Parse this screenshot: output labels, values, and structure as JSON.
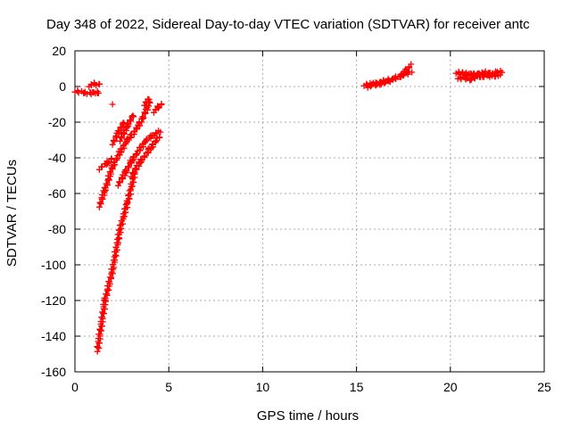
{
  "chart_data": {
    "type": "scatter",
    "title": "Day 348 of 2022, Sidereal Day-to-day VTEC variation (SDTVAR) for receiver antc",
    "xlabel": "GPS time / hours",
    "ylabel": "SDTVAR / TECUs",
    "xlim": [
      0,
      25
    ],
    "ylim": [
      -160,
      20
    ],
    "xticks": [
      "0",
      "5",
      "10",
      "15",
      "20",
      "25"
    ],
    "yticks": [
      "20",
      "0",
      "-20",
      "-40",
      "-60",
      "-80",
      "-100",
      "-120",
      "-140",
      "-160"
    ],
    "grid": true,
    "marker": "+",
    "color": "#ff0000",
    "series": [
      {
        "segments": [
          [
            [
              0.0,
              -2.5
            ],
            [
              0.5,
              -3.5
            ],
            [
              1.0,
              -3.8
            ],
            [
              1.3,
              -3.2
            ]
          ],
          [
            [
              0.75,
              0.5
            ],
            [
              1.0,
              1.5
            ],
            [
              1.3,
              1.0
            ]
          ],
          [
            [
              1.2,
              -148
            ],
            [
              1.6,
              -120
            ],
            [
              2.0,
              -103
            ],
            [
              2.4,
              -80
            ],
            [
              2.8,
              -65
            ],
            [
              3.2,
              -48
            ]
          ],
          [
            [
              1.3,
              -67
            ],
            [
              1.6,
              -58
            ],
            [
              2.0,
              -45
            ],
            [
              2.4,
              -37
            ],
            [
              2.8,
              -30
            ],
            [
              3.2,
              -25
            ],
            [
              3.6,
              -18
            ],
            [
              4.0,
              -8
            ]
          ],
          [
            [
              1.3,
              -46
            ],
            [
              1.7,
              -43
            ],
            [
              2.0,
              -40
            ]
          ],
          [
            [
              2.0,
              -32
            ],
            [
              2.3,
              -26
            ],
            [
              2.6,
              -20
            ]
          ],
          [
            [
              2.4,
              -30
            ],
            [
              2.8,
              -22
            ],
            [
              3.1,
              -16
            ]
          ],
          [
            [
              2.3,
              -55
            ],
            [
              2.7,
              -48
            ],
            [
              3.0,
              -42
            ],
            [
              3.4,
              -36
            ],
            [
              3.8,
              -30
            ],
            [
              4.2,
              -27
            ],
            [
              4.5,
              -25
            ]
          ],
          [
            [
              3.0,
              -50
            ],
            [
              3.5,
              -42
            ],
            [
              4.0,
              -35
            ],
            [
              4.5,
              -28
            ]
          ],
          [
            [
              4.2,
              -14
            ],
            [
              4.4,
              -12
            ],
            [
              4.6,
              -10
            ]
          ],
          [
            [
              3.7,
              -10
            ],
            [
              3.9,
              -7
            ]
          ],
          [
            [
              2.0,
              -10
            ]
          ],
          [
            [
              15.4,
              1.0
            ],
            [
              16.0,
              1.5
            ],
            [
              16.5,
              3.0
            ],
            [
              17.0,
              4.5
            ],
            [
              17.5,
              6.5
            ],
            [
              17.9,
              8.5
            ]
          ],
          [
            [
              15.6,
              0.0
            ],
            [
              16.2,
              1.5
            ],
            [
              16.8,
              3.0
            ]
          ],
          [
            [
              17.3,
              6.0
            ],
            [
              17.6,
              8.5
            ],
            [
              17.9,
              12.0
            ]
          ],
          [
            [
              20.3,
              8.0
            ],
            [
              20.8,
              7.0
            ],
            [
              21.5,
              6.5
            ],
            [
              22.0,
              7.0
            ],
            [
              22.5,
              8.0
            ],
            [
              22.7,
              8.5
            ]
          ],
          [
            [
              20.4,
              5.0
            ],
            [
              21.0,
              4.0
            ],
            [
              21.5,
              5.5
            ],
            [
              22.0,
              6.0
            ],
            [
              22.6,
              6.0
            ]
          ],
          [
            [
              20.5,
              7.5
            ],
            [
              21.2,
              6.5
            ],
            [
              22.0,
              8.0
            ]
          ]
        ]
      }
    ]
  }
}
